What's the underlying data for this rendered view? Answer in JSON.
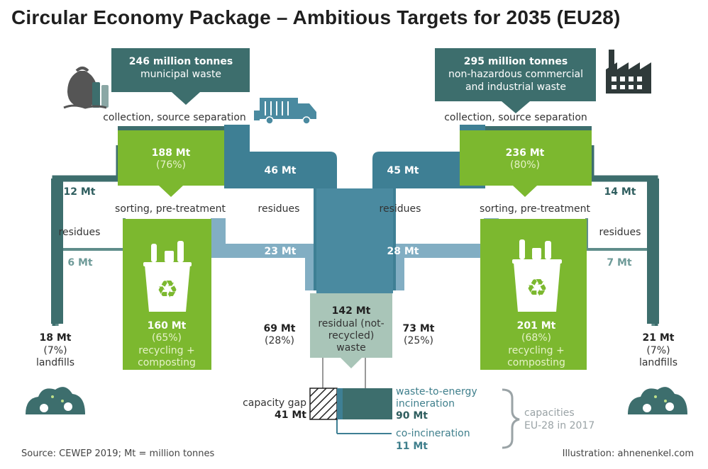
{
  "title": "Circular Economy Package – Ambitious Targets for 2035 (EU28)",
  "colors": {
    "green": "#7cb82f",
    "dark_teal": "#3d6e6d",
    "blue_teal": "#3e7f94",
    "light_blue": "#82aec3",
    "pale_green": "#a9c5b8",
    "gray": "#9aa3a6"
  },
  "icons": [
    "trash-bag-icon",
    "garbage-truck-icon",
    "factory-icon",
    "recycling-bin-icon",
    "bush-icon"
  ],
  "municipal": {
    "total": "246 million tonnes",
    "label": "municipal waste",
    "collection": "collection, source separation",
    "sorted": "188 Mt",
    "sorted_pct": "(76%)",
    "residues_direct": "46 Mt",
    "sorting_label": "sorting, pre-treatment",
    "landfill_direct": "12 Mt",
    "residues_sorting": "23 Mt",
    "landfill_sorting": "6 Mt",
    "recycling": "160 Mt",
    "recycling_pct": "(65%)",
    "recycling_label_1": "recycling +",
    "recycling_label_2": "composting",
    "landfill_total": "18 Mt",
    "landfill_pct": "(7%)",
    "landfill_label": "landfills",
    "residual_share": "69 Mt",
    "residual_share_pct": "(28%)"
  },
  "industrial": {
    "total": "295 million tonnes",
    "label_1": "non-hazardous commercial",
    "label_2": "and industrial waste",
    "collection": "collection, source separation",
    "sorted": "236 Mt",
    "sorted_pct": "(80%)",
    "residues_direct": "45 Mt",
    "sorting_label": "sorting, pre-treatment",
    "landfill_direct": "14 Mt",
    "residues_sorting": "28 Mt",
    "landfill_sorting": "7 Mt",
    "recycling": "201 Mt",
    "recycling_pct": "(68%)",
    "recycling_label_1": "recycling +",
    "recycling_label_2": "composting",
    "landfill_total": "21 Mt",
    "landfill_pct": "(7%)",
    "landfill_label": "landfills",
    "residual_share": "73 Mt",
    "residual_share_pct": "(25%)"
  },
  "residues_label": "residues",
  "residual": {
    "value": "142 Mt",
    "label_1": "residual (not-",
    "label_2": "recycled)",
    "label_3": "waste"
  },
  "capacity": {
    "gap_label": "capacity gap",
    "gap_value": "41 Mt",
    "wte_label_1": "waste-to-energy",
    "wte_label_2": "incineration",
    "wte_value": "90 Mt",
    "coinc_label": "co-incineration",
    "coinc_value": "11 Mt",
    "note_1": "capacities",
    "note_2": "EU-28 in 2017"
  },
  "footer": {
    "source": "Source: CEWEP 2019; Mt = million tonnes",
    "illustration": "Illustration: ahnenenkel.com"
  }
}
